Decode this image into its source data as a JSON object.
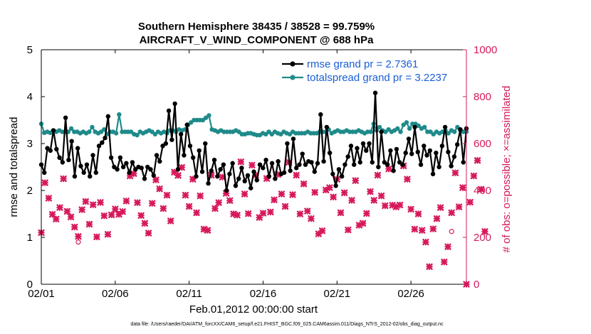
{
  "chart_data": {
    "type": "line",
    "title": "Southern Hemisphere 38435 / 38528 = 99.759%",
    "subtitle": "AIRCRAFT_V_WIND_COMPONENT @ 688 hPa",
    "xlabel": "Feb.01,2012 00:00:00 start",
    "ylabel": "rmse and totalspread",
    "ylabel_right": "# of obs: o=possible; ×=assimilated",
    "footnote": "data file: /Users/raeder/DAI/ATM_forcXX/CAM6_setup/f.e21.FHIST_BGC.f09_025.CAM6assim.011/Diags_NTrS_2012-02/obs_diag_output.nc",
    "x_tick_labels": [
      "02/01",
      "02/06",
      "02/11",
      "02/16",
      "02/21",
      "02/26"
    ],
    "x_ticks": [
      0,
      5,
      10,
      15,
      20,
      25
    ],
    "xlim": [
      0,
      28.75
    ],
    "ylim": [
      0,
      5
    ],
    "y_ticks": [
      "0",
      "1",
      "2",
      "3",
      "4",
      "5"
    ],
    "ylim_right": [
      0,
      1000
    ],
    "y_ticks_right": [
      "0",
      "200",
      "400",
      "600",
      "800",
      "1000"
    ],
    "series": [
      {
        "name": "rmse grand pr = 2.7361",
        "color": "#000000",
        "values": [
          2.55,
          2.38,
          2.9,
          2.85,
          3.28,
          2.88,
          2.7,
          2.6,
          3.55,
          2.65,
          3.05,
          2.3,
          2.9,
          2.52,
          2.38,
          2.55,
          2.3,
          2.75,
          2.38,
          2.95,
          3.02,
          3.12,
          3.58,
          2.7,
          2.5,
          2.45,
          2.7,
          2.5,
          2.58,
          2.38,
          2.6,
          2.45,
          2.5,
          2.48,
          2.25,
          2.5,
          2.45,
          2.32,
          2.75,
          2.62,
          2.95,
          3.0,
          3.7,
          3.08,
          3.85,
          2.45,
          3.2,
          2.75,
          3.4,
          2.95,
          2.7,
          2.3,
          2.85,
          2.4,
          3.0,
          2.15,
          2.42,
          2.65,
          2.3,
          2.45,
          2.55,
          2.0,
          2.35,
          2.58,
          2.1,
          2.25,
          2.48,
          2.2,
          2.32,
          2.05,
          2.4,
          2.22,
          2.55,
          2.48,
          2.65,
          2.3,
          2.58,
          2.25,
          2.62,
          2.35,
          2.38,
          3.0,
          2.42,
          3.1,
          2.48,
          2.55,
          2.78,
          2.55,
          2.62,
          2.6,
          2.4,
          2.58,
          3.62,
          2.62,
          3.35,
          2.8,
          2.35,
          2.1,
          2.45,
          2.3,
          2.55,
          2.72,
          2.95,
          2.55,
          2.9,
          2.6,
          3.0,
          2.85,
          3.0,
          2.6,
          4.08,
          2.5,
          3.25,
          2.6,
          2.55,
          2.85,
          2.42,
          2.88,
          2.6,
          2.55,
          2.8,
          3.1,
          2.78,
          3.35,
          2.82,
          2.55,
          2.95,
          2.75,
          2.85,
          2.35,
          2.8,
          2.5,
          2.95,
          3.35,
          2.82,
          2.52,
          2.72,
          2.98,
          3.3,
          2.6,
          3.32
        ]
      },
      {
        "name": "totalspread grand pr = 3.2237",
        "color": "#1f8a8a",
        "values": [
          3.42,
          3.23,
          3.25,
          3.23,
          3.28,
          3.25,
          3.28,
          3.25,
          3.25,
          3.25,
          3.32,
          3.25,
          3.25,
          3.22,
          3.25,
          3.22,
          3.25,
          3.35,
          3.25,
          3.22,
          3.25,
          3.3,
          3.2,
          3.25,
          3.25,
          3.22,
          3.62,
          3.25,
          3.25,
          3.25,
          3.25,
          3.2,
          3.18,
          3.25,
          3.22,
          3.25,
          3.28,
          3.25,
          3.2,
          3.25,
          3.22,
          3.25,
          3.22,
          3.28,
          3.28,
          3.25,
          3.3,
          3.28,
          3.3,
          3.4,
          3.45,
          3.5,
          3.5,
          3.5,
          3.5,
          3.55,
          3.6,
          3.3,
          3.28,
          3.25,
          3.28,
          3.25,
          3.25,
          3.25,
          3.25,
          3.28,
          3.25,
          3.2,
          3.2,
          3.22,
          3.22,
          3.2,
          3.18,
          3.18,
          3.22,
          3.2,
          3.25,
          3.2,
          3.25,
          3.22,
          3.2,
          3.25,
          3.22,
          3.2,
          3.25,
          3.22,
          3.22,
          3.22,
          3.22,
          3.25,
          3.22,
          3.22,
          3.22,
          3.25,
          3.25,
          3.25,
          3.3,
          3.22,
          3.25,
          3.28,
          3.25,
          3.25,
          3.28,
          3.25,
          3.25,
          3.25,
          3.28,
          3.25,
          3.22,
          3.25,
          3.25,
          3.42,
          3.28,
          3.35,
          3.28,
          3.25,
          3.3,
          3.25,
          3.28,
          3.32,
          3.25,
          3.4,
          3.45,
          3.32,
          3.42,
          3.42,
          3.38,
          3.32,
          3.35,
          3.25,
          3.25,
          3.2,
          3.25,
          3.22,
          3.25,
          3.28,
          3.22,
          3.28,
          3.25,
          3.35,
          3.28,
          3.25,
          3.25
        ]
      }
    ],
    "obs_assimilated": [
      [
        0.0,
        220
      ],
      [
        0.25,
        433
      ],
      [
        0.5,
        367
      ],
      [
        0.75,
        298
      ],
      [
        1.0,
        278
      ],
      [
        1.25,
        327
      ],
      [
        1.5,
        450
      ],
      [
        1.75,
        311
      ],
      [
        2.0,
        287
      ],
      [
        2.25,
        244
      ],
      [
        2.5,
        204
      ],
      [
        2.75,
        318
      ],
      [
        3.0,
        353
      ],
      [
        3.25,
        256
      ],
      [
        3.5,
        339
      ],
      [
        3.75,
        202
      ],
      [
        4.0,
        349
      ],
      [
        4.25,
        292
      ],
      [
        4.5,
        213
      ],
      [
        4.75,
        296
      ],
      [
        5.0,
        321
      ],
      [
        5.25,
        298
      ],
      [
        5.5,
        310
      ],
      [
        5.75,
        355
      ],
      [
        6.0,
        462
      ],
      [
        6.25,
        472
      ],
      [
        6.5,
        348
      ],
      [
        6.75,
        293
      ],
      [
        7.0,
        260
      ],
      [
        7.25,
        218
      ],
      [
        7.5,
        345
      ],
      [
        7.75,
        445
      ],
      [
        8.0,
        407
      ],
      [
        8.25,
        323
      ],
      [
        8.5,
        380
      ],
      [
        8.75,
        270
      ],
      [
        9.0,
        478
      ],
      [
        9.25,
        464
      ],
      [
        9.5,
        498
      ],
      [
        9.75,
        380
      ],
      [
        10.0,
        332
      ],
      [
        10.25,
        448
      ],
      [
        10.5,
        305
      ],
      [
        10.75,
        377
      ],
      [
        11.0,
        235
      ],
      [
        11.25,
        230
      ],
      [
        11.5,
        465
      ],
      [
        11.75,
        323
      ],
      [
        12.0,
        348
      ],
      [
        12.25,
        457
      ],
      [
        12.5,
        388
      ],
      [
        12.75,
        357
      ],
      [
        13.0,
        300
      ],
      [
        13.25,
        295
      ],
      [
        13.5,
        522
      ],
      [
        13.75,
        385
      ],
      [
        14.0,
        301
      ],
      [
        14.25,
        508
      ],
      [
        14.5,
        465
      ],
      [
        14.75,
        285
      ],
      [
        15.0,
        303
      ],
      [
        15.25,
        451
      ],
      [
        15.5,
        308
      ],
      [
        15.75,
        360
      ],
      [
        16.0,
        468
      ],
      [
        16.25,
        385
      ],
      [
        16.5,
        332
      ],
      [
        16.75,
        520
      ],
      [
        17.0,
        382
      ],
      [
        17.25,
        465
      ],
      [
        17.5,
        300
      ],
      [
        17.75,
        428
      ],
      [
        18.0,
        312
      ],
      [
        18.25,
        280
      ],
      [
        18.5,
        392
      ],
      [
        18.75,
        215
      ],
      [
        19.0,
        228
      ],
      [
        19.25,
        402
      ],
      [
        19.5,
        412
      ],
      [
        19.75,
        372
      ],
      [
        20.0,
        448
      ],
      [
        20.25,
        305
      ],
      [
        20.5,
        390
      ],
      [
        20.75,
        232
      ],
      [
        21.0,
        358
      ],
      [
        21.25,
        442
      ],
      [
        21.5,
        252
      ],
      [
        21.75,
        260
      ],
      [
        22.0,
        302
      ],
      [
        22.25,
        395
      ],
      [
        22.5,
        358
      ],
      [
        22.75,
        465
      ],
      [
        23.0,
        377
      ],
      [
        23.25,
        335
      ],
      [
        23.5,
        492
      ],
      [
        23.75,
        337
      ],
      [
        24.0,
        330
      ],
      [
        24.25,
        338
      ],
      [
        24.5,
        505
      ],
      [
        24.75,
        448
      ],
      [
        25.0,
        320
      ],
      [
        25.25,
        235
      ],
      [
        25.5,
        300
      ],
      [
        25.75,
        230
      ],
      [
        26.0,
        180
      ],
      [
        26.25,
        75
      ],
      [
        26.5,
        236
      ],
      [
        26.75,
        280
      ],
      [
        27.0,
        327
      ],
      [
        27.25,
        95
      ],
      [
        27.5,
        160
      ],
      [
        27.75,
        305
      ],
      [
        28.0,
        475
      ],
      [
        28.25,
        330
      ],
      [
        28.5,
        412
      ],
      [
        28.75,
        0
      ],
      [
        29.0,
        350
      ],
      [
        29.25,
        462
      ],
      [
        29.5,
        528
      ],
      [
        29.75,
        405
      ],
      [
        30.0,
        225
      ]
    ],
    "obs_possible": [
      [
        2.5,
        180
      ],
      [
        27.75,
        225
      ]
    ]
  }
}
